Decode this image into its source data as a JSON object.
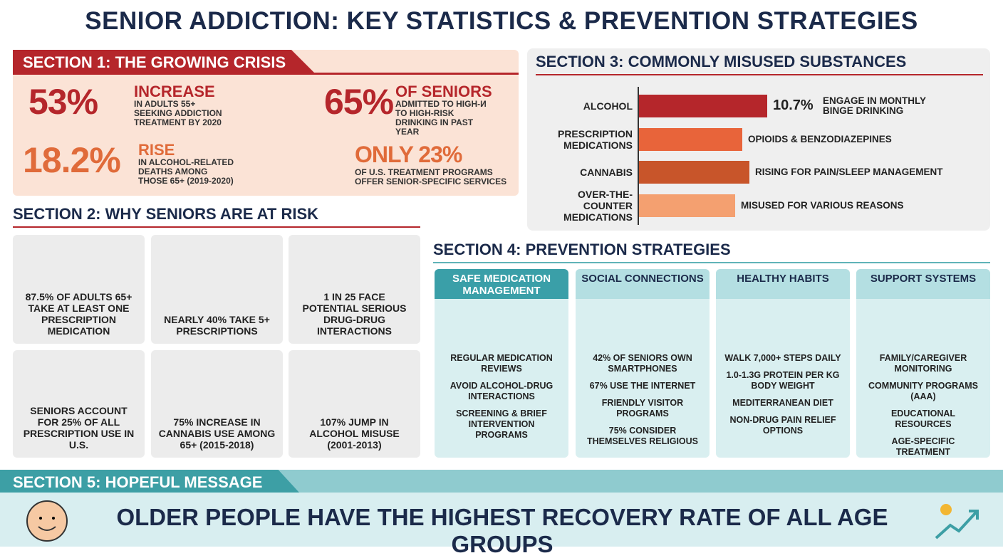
{
  "title": "SENIOR ADDICTION: KEY STATISTICS & PREVENTION STRATEGIES",
  "section1": {
    "heading": "SECTION 1: THE GROWING CRISIS",
    "stats": [
      {
        "big": "53%",
        "label": "INCREASE",
        "text": "IN ADULTS 55+ SEEKING ADDICTION TREATMENT BY 2020"
      },
      {
        "big": "65%",
        "label": "OF SENIORS",
        "text": "ADMITTED TO HIGH-И TO HIGH-RISK DRINKING IN PAST YEAR"
      },
      {
        "big": "18.2%",
        "label": "RISE",
        "text": "IN ALCOHOL-RELATED DEATHS AMONG THOSE 65+ (2019-2020)"
      },
      {
        "big": "ONLY 23%",
        "text": "OF U.S. TREATMENT PROGRAMS OFFER SENIOR-SPECIFIC SERVICES"
      }
    ]
  },
  "section2": {
    "heading": "SECTION 2: WHY SENIORS ARE AT RISK",
    "cards": [
      "87.5% OF ADULTS 65+ TAKE AT LEAST ONE PRESCRIPTION MEDICATION",
      "NEARLY 40% TAKE 5+ PRESCRIPTIONS",
      "1 IN 25 FACE POTENTIAL SERIOUS DRUG-DRUG INTERACTIONS",
      "SENIORS ACCOUNT FOR 25% OF ALL PRESCRIPTION USE IN U.S.",
      "75% INCREASE IN CANNABIS USE AMONG 65+ (2015-2018)",
      "107% JUMP IN ALCOHOL MISUSE (2001-2013)"
    ]
  },
  "section3": {
    "heading": "SECTION 3: COMMONLY MISUSED SUBSTANCES",
    "items": [
      {
        "name": "ALCOHOL",
        "value": "10.7%",
        "note": "ENGAGE IN MONTHLY BINGE DRINKING"
      },
      {
        "name": "PRESCRIPTION MEDICATIONS",
        "note": "OPIOIDS & BENZODIAZEPINES"
      },
      {
        "name": "CANNABIS",
        "note": "RISING FOR PAIN/SLEEP MANAGEMENT"
      },
      {
        "name": "OVER-THE-COUNTER MEDICATIONS",
        "note": "MISUSED FOR VARIOUS REASONS"
      }
    ]
  },
  "section4": {
    "heading": "SECTION 4: PREVENTION STRATEGIES",
    "columns": [
      {
        "title": "SAFE MEDICATION MANAGEMENT",
        "items": [
          "REGULAR MEDICATION REVIEWS",
          "AVOID ALCOHOL-DRUG INTERACTIONS",
          "SCREENING & BRIEF INTERVENTION PROGRAMS"
        ]
      },
      {
        "title": "SOCIAL CONNECTIONS",
        "items": [
          "42% OF SENIORS OWN SMARTPHONES",
          "67% USE THE INTERNET",
          "FRIENDLY VISITOR PROGRAMS",
          "75% CONSIDER THEMSELVES RELIGIOUS"
        ]
      },
      {
        "title": "HEALTHY HABITS",
        "items": [
          "WALK 7,000+ STEPS DAILY",
          "1.0-1.3G PROTEIN PER KG BODY WEIGHT",
          "MEDITERRANEAN DIET",
          "NON-DRUG PAIN RELIEF OPTIONS"
        ]
      },
      {
        "title": "SUPPORT SYSTEMS",
        "items": [
          "FAMILY/CAREGIVER MONITORING",
          "COMMUNITY PROGRAMS (AAA)",
          "EDUCATIONAL RESOURCES",
          "AGE-SPECIFIC TREATMENT"
        ]
      }
    ]
  },
  "section5": {
    "heading": "SECTION 5: HOPEFUL MESSAGE",
    "message": "OLDER PEOPLE HAVE THE HIGHEST RECOVERY RATE OF ALL AGE GROUPS"
  }
}
